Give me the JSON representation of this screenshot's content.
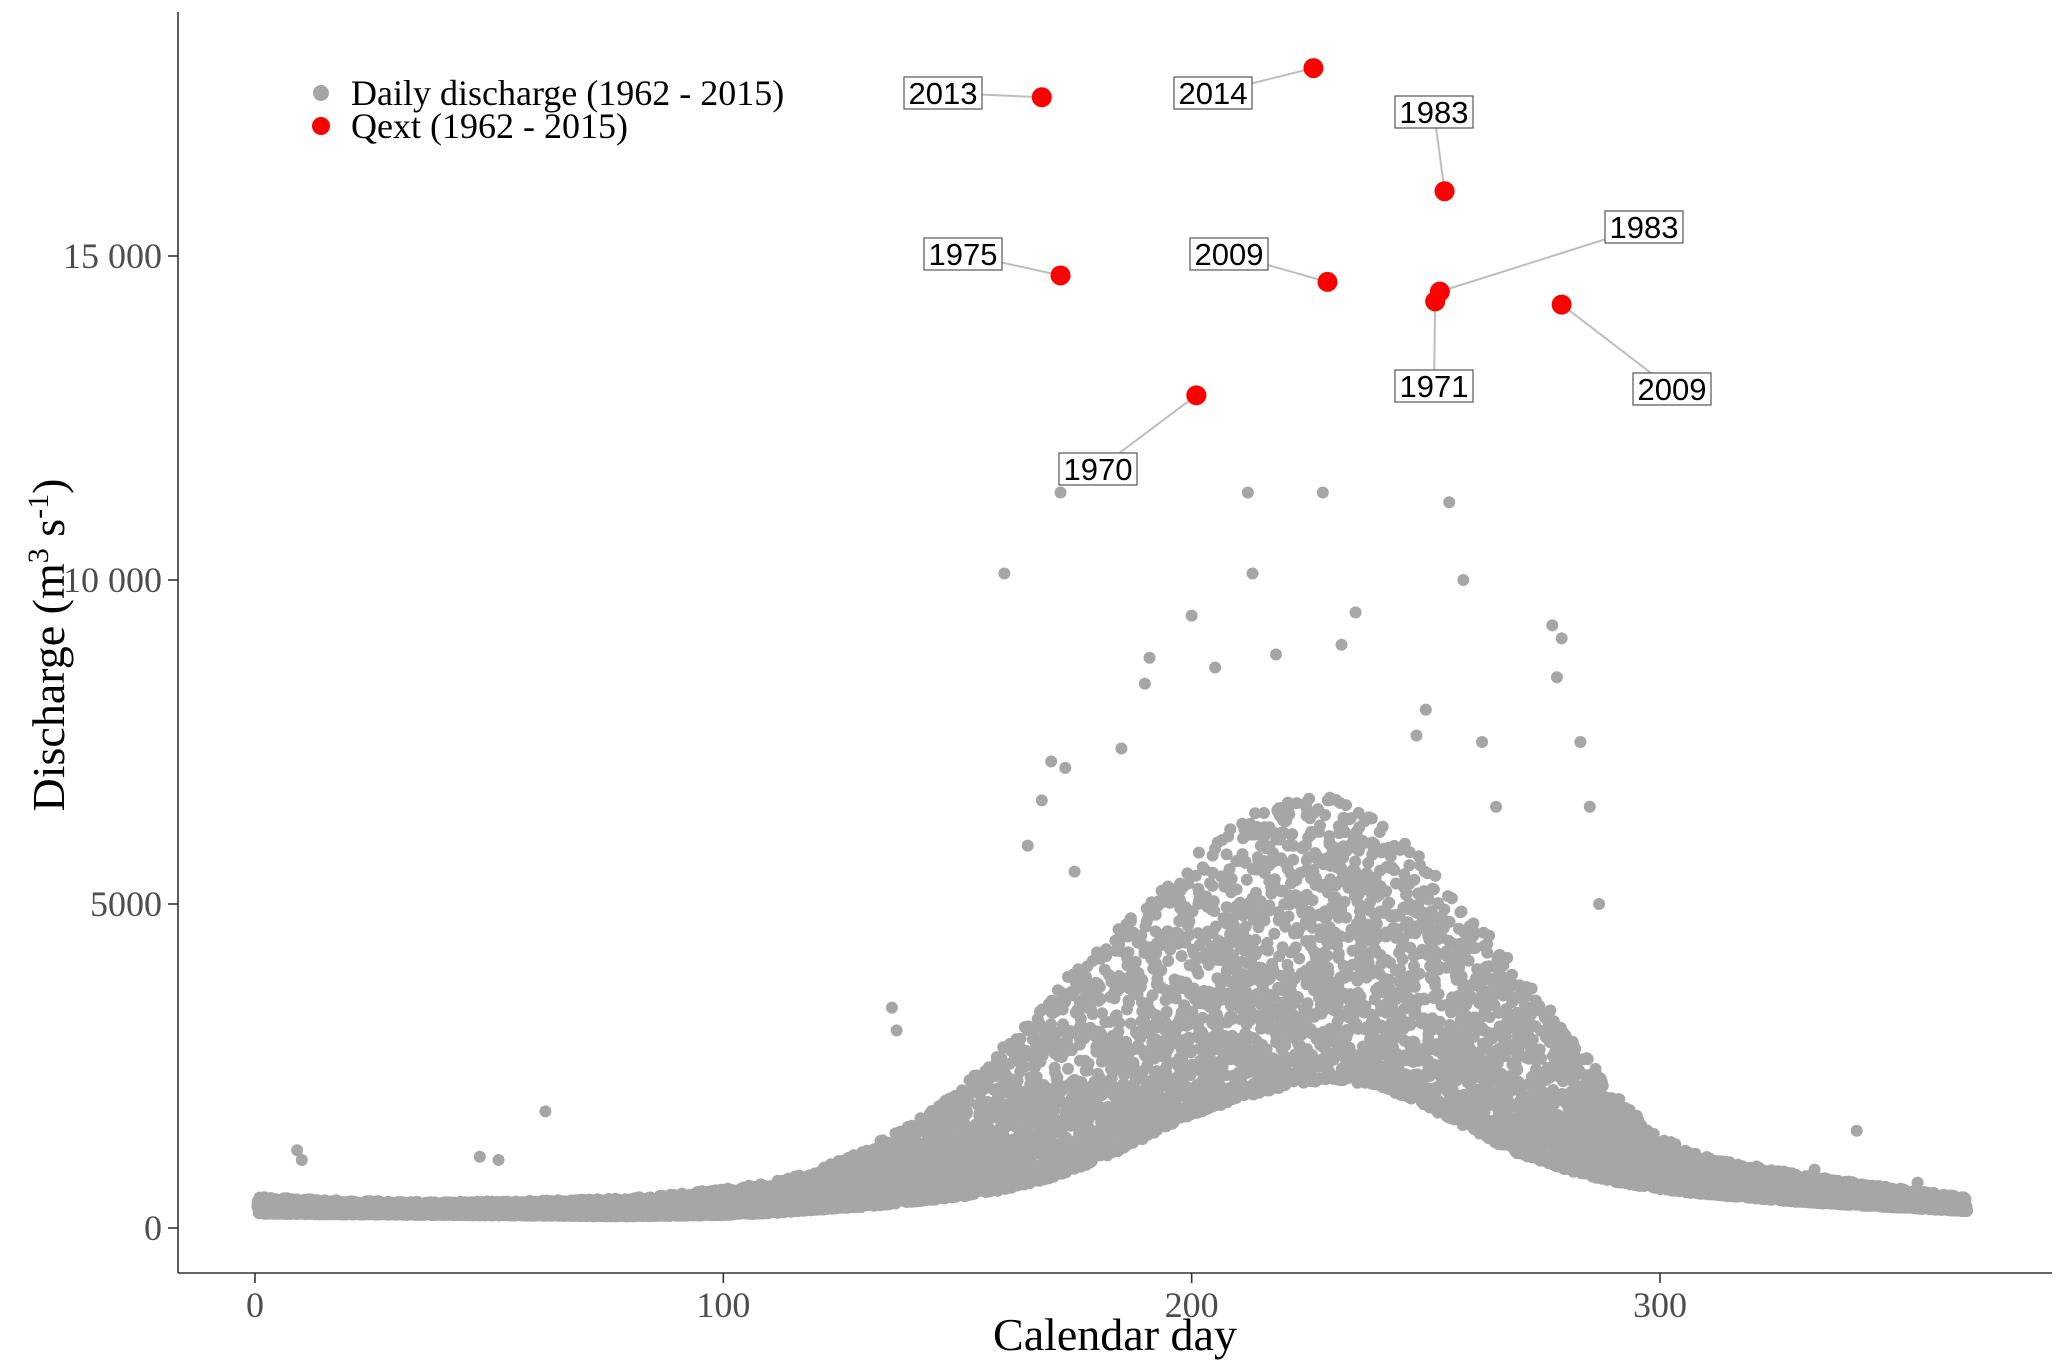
{
  "chart_data": {
    "type": "scatter",
    "title": "",
    "xlabel": "Calendar day",
    "ylabel": "Discharge (m^3 s^-1)",
    "ylabel_parts": {
      "main": "Discharge (m",
      "sup1": "3",
      "mid": " s",
      "sup2": "-1",
      "end": ")"
    },
    "xlim": [
      -17,
      388
    ],
    "ylim": [
      -700,
      18900
    ],
    "x_ticks": [
      0,
      100,
      200,
      300
    ],
    "x_tick_labels": [
      "0",
      "100",
      "200",
      "300"
    ],
    "y_ticks": [
      0,
      5000,
      10000,
      15000
    ],
    "y_tick_labels": [
      "0",
      "5000",
      "10 000",
      "15 000"
    ],
    "grid": false,
    "legend_position": "top-left",
    "series": [
      {
        "name": "Daily discharge (1962 - 2015)",
        "color": "#a6a6a6",
        "points_note": "dense cloud of 1962-2015 daily values",
        "envelope": {
          "days": [
            1,
            20,
            40,
            60,
            80,
            100,
            110,
            120,
            130,
            140,
            150,
            160,
            170,
            180,
            190,
            200,
            210,
            220,
            230,
            240,
            250,
            260,
            270,
            280,
            290,
            300,
            310,
            320,
            330,
            340,
            350,
            360,
            365
          ],
          "low": [
            220,
            210,
            200,
            190,
            180,
            200,
            230,
            280,
            330,
            400,
            480,
            600,
            780,
            1050,
            1400,
            1750,
            2000,
            2200,
            2300,
            2200,
            1900,
            1500,
            1150,
            900,
            720,
            600,
            520,
            460,
            400,
            360,
            320,
            280,
            260
          ],
          "high": [
            480,
            420,
            400,
            420,
            460,
            600,
            700,
            900,
            1200,
            1600,
            2100,
            2800,
            3600,
            4300,
            5000,
            5700,
            6300,
            6600,
            6700,
            6300,
            5600,
            4800,
            3900,
            3000,
            2100,
            1400,
            1100,
            950,
            820,
            720,
            620,
            520,
            480
          ]
        },
        "outliers": [
          [
            9,
            1200
          ],
          [
            10,
            1050
          ],
          [
            62,
            1800
          ],
          [
            48,
            1100
          ],
          [
            52,
            1050
          ],
          [
            136,
            3400
          ],
          [
            137,
            3050
          ],
          [
            160,
            10100
          ],
          [
            172,
            11350
          ],
          [
            170,
            7200
          ],
          [
            173,
            7100
          ],
          [
            175,
            5500
          ],
          [
            168,
            6600
          ],
          [
            165,
            5900
          ],
          [
            185,
            7400
          ],
          [
            190,
            8400
          ],
          [
            191,
            8800
          ],
          [
            200,
            9450
          ],
          [
            205,
            8650
          ],
          [
            212,
            11350
          ],
          [
            213,
            10100
          ],
          [
            218,
            8850
          ],
          [
            228,
            11350
          ],
          [
            235,
            9500
          ],
          [
            232,
            9000
          ],
          [
            248,
            7600
          ],
          [
            255,
            11200
          ],
          [
            258,
            10000
          ],
          [
            250,
            8000
          ],
          [
            262,
            7500
          ],
          [
            265,
            6500
          ],
          [
            277,
            9300
          ],
          [
            279,
            9100
          ],
          [
            278,
            8500
          ],
          [
            283,
            7500
          ],
          [
            285,
            6500
          ],
          [
            287,
            5000
          ],
          [
            342,
            1500
          ],
          [
            333,
            900
          ],
          [
            355,
            700
          ]
        ]
      },
      {
        "name": "Qext (1962 - 2015)",
        "color": "#ff0000",
        "points": [
          {
            "x": 168,
            "y": 17450,
            "label": "2013"
          },
          {
            "x": 226,
            "y": 17900,
            "label": "2014"
          },
          {
            "x": 254,
            "y": 16000,
            "label": "1983"
          },
          {
            "x": 172,
            "y": 14700,
            "label": "1975"
          },
          {
            "x": 229,
            "y": 14600,
            "label": "2009"
          },
          {
            "x": 253,
            "y": 14450,
            "label": "1983"
          },
          {
            "x": 252,
            "y": 14300,
            "label": "1971"
          },
          {
            "x": 279,
            "y": 14250,
            "label": "2009"
          },
          {
            "x": 201,
            "y": 12850,
            "label": "1970"
          }
        ]
      }
    ]
  }
}
